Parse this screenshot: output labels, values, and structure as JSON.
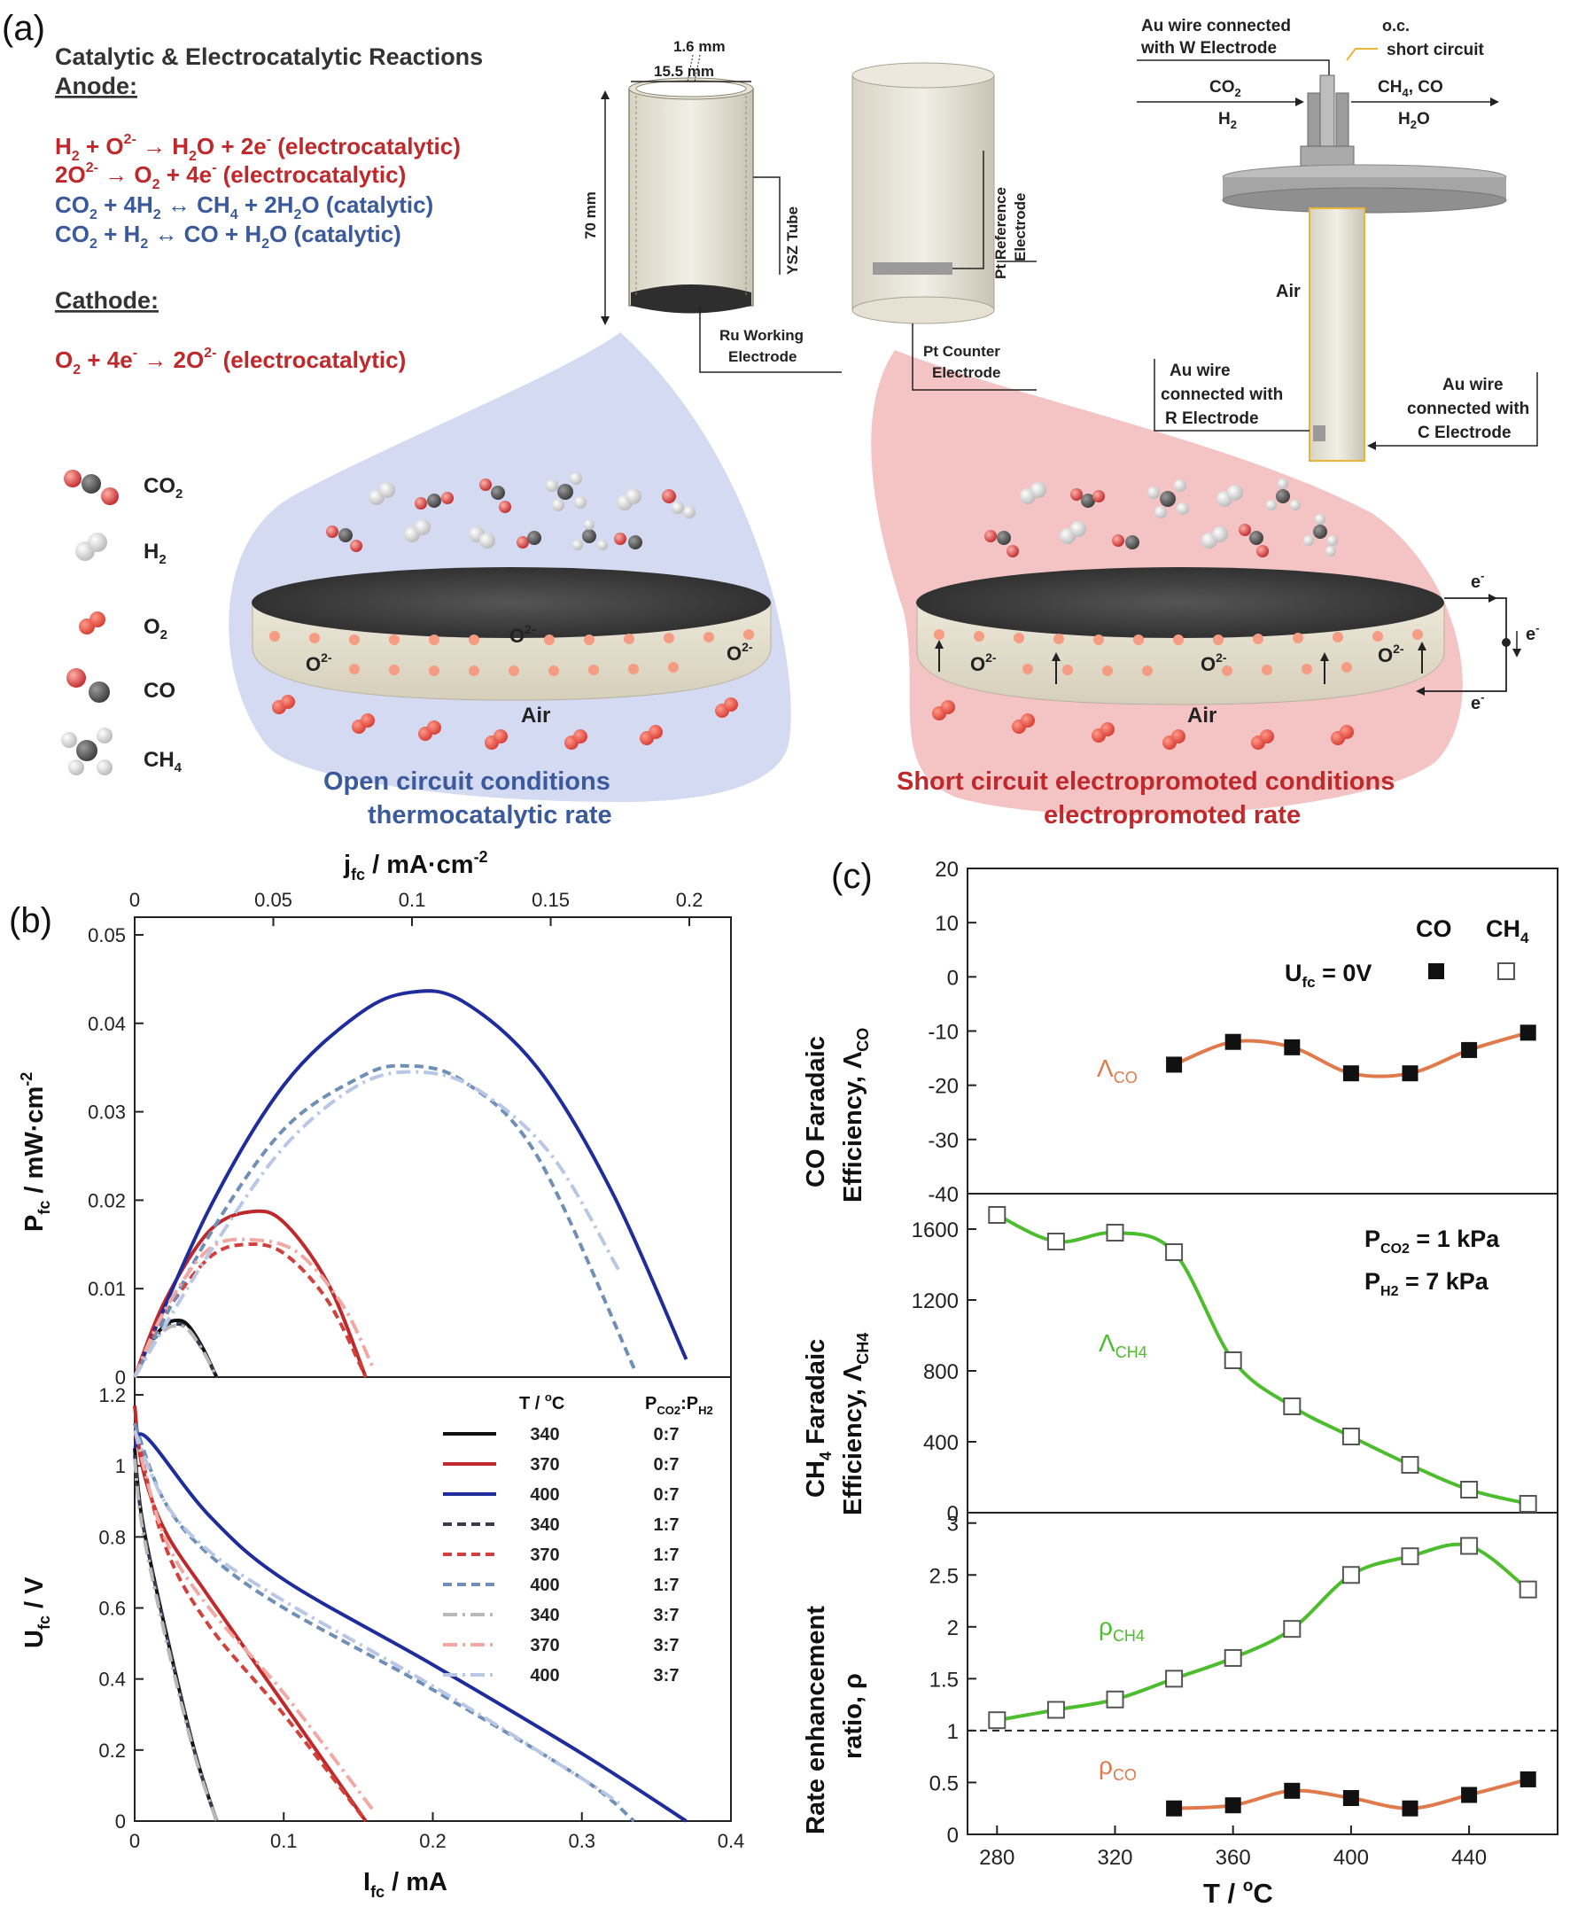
{
  "panel_a": {
    "label": "(a)",
    "title": "Catalytic & Electrocatalytic Reactions",
    "anode_heading": "Anode:",
    "cathode_heading": "Cathode:",
    "reactions": {
      "r1": {
        "a": "H",
        "a_sub": "2",
        "b": " + O",
        "b_sup": "2-",
        "c": " → H",
        "c_sub": "2",
        "d": "O + 2e",
        "d_sup": "-",
        "e": " (electrocatalytic)"
      },
      "r2": {
        "a": "2O",
        "a_sup": "2-",
        "b": " → O",
        "b_sub": "2",
        "c": " + 4e",
        "c_sup": "-",
        "d": " (electrocatalytic)"
      },
      "r3": {
        "a": "CO",
        "a_sub": "2",
        "b": " + 4H",
        "b_sub": "2",
        "c": " ↔ CH",
        "c_sub": "4",
        "d": " + 2H",
        "d_sub": "2",
        "e": "O (catalytic)"
      },
      "r4": {
        "a": "CO",
        "a_sub": "2",
        "b": " + H",
        "b_sub": "2",
        "c": " ↔ CO + H",
        "c_sub": "2",
        "d": "O (catalytic)"
      },
      "r5": {
        "a": "O",
        "a_sub": "2",
        "b": " + 4e",
        "b_sup": "-",
        "c": " → 2O",
        "c_sup": "2-",
        "d": " (electrocatalytic)"
      }
    },
    "tube": {
      "thickness": "1.6 mm",
      "diameter": "15.5 mm",
      "height": "70 mm",
      "ysz": "YSZ Tube",
      "ru_line1": "Ru Working",
      "ru_line2": "Electrode"
    },
    "outer": {
      "pt_ref_line1": "Pt Reference",
      "pt_ref_line2": "Electrode",
      "pt_counter_line1": "Pt Counter",
      "pt_counter_line2": "Electrode"
    },
    "reactor": {
      "au_w_line1": "Au wire connected",
      "au_w_line2": "with W Electrode",
      "oc": "o.c.",
      "sc": "short circuit",
      "in_line1": "CO",
      "in_line1_sub": "2",
      "in_line2": "H",
      "in_line2_sub": "2",
      "out_line1": "CH",
      "out_line1_sub": "4",
      "out_line1_b": ", CO",
      "out_line2": "H",
      "out_line2_sub": "2",
      "out_line2_b": "O",
      "air": "Air",
      "au_r_line1": "Au wire",
      "au_r_line2": "connected with",
      "au_r_line3": "R Electrode",
      "au_c_line1": "Au wire",
      "au_c_line2": "connected with",
      "au_c_line3": "C Electrode"
    },
    "legend": {
      "co2": "CO",
      "co2_sub": "2",
      "h2": "H",
      "h2_sub": "2",
      "o2": "O",
      "o2_sub": "2",
      "co": "CO",
      "ch4": "CH",
      "ch4_sub": "4"
    },
    "disk": {
      "o2minus": "O",
      "o2minus_sup": "2-",
      "air": "Air",
      "e": "e",
      "e_sup": "-"
    },
    "caption_left_1": "Open circuit conditions",
    "caption_left_2": "thermocatalytic rate",
    "caption_right_1": "Short circuit electropromoted conditions",
    "caption_right_2": "electropromoted rate",
    "colors": {
      "red": "#c0292b",
      "blue": "#3a5a9c",
      "blue_bg": "#d4daf2",
      "red_bg": "#f4c4c4"
    }
  },
  "panel_b": {
    "label": "(b)",
    "top_axis_label": "j",
    "top_axis_label_sub": "fc",
    "top_axis_label_b": " / mA·cm",
    "top_axis_label_sup": "-2",
    "y1_label": "P",
    "y1_label_sub": "fc",
    "y1_label_b": " / mW·cm",
    "y1_label_sup": "-2",
    "y2_label": "U",
    "y2_label_sub": "fc",
    "y2_label_b": " / V",
    "x_label": "I",
    "x_label_sub": "fc",
    "x_label_b": " / mA",
    "legend_head_t": "T / ",
    "legend_head_t_sup": "o",
    "legend_head_t_b": "C",
    "legend_head_p": "P",
    "legend_head_p_sub": "CO2",
    "legend_head_p_b": ":P",
    "legend_head_p_sub2": "H2",
    "legend_rows": [
      {
        "t": "340",
        "r": "0:7"
      },
      {
        "t": "370",
        "r": "0:7"
      },
      {
        "t": "400",
        "r": "0:7"
      },
      {
        "t": "340",
        "r": "1:7"
      },
      {
        "t": "370",
        "r": "1:7"
      },
      {
        "t": "400",
        "r": "1:7"
      },
      {
        "t": "340",
        "r": "3:7"
      },
      {
        "t": "370",
        "r": "3:7"
      },
      {
        "t": "400",
        "r": "3:7"
      }
    ]
  },
  "panel_c": {
    "label": "(c)",
    "top_legend_co": "CO",
    "top_legend_ch4": "CH",
    "top_legend_ch4_sub": "4",
    "ufc": "U",
    "ufc_sub": "fc",
    "ufc_b": " = 0V",
    "lambda_co": "Λ",
    "lambda_co_sub": "CO",
    "lambda_ch4": "Λ",
    "lambda_ch4_sub": "CH4",
    "rho_ch4": "ρ",
    "rho_ch4_sub": "CH4",
    "rho_co": "ρ",
    "rho_co_sub": "CO",
    "pco2": "P",
    "pco2_sub": "CO2",
    "pco2_b": " = 1 kPa",
    "ph2": "P",
    "ph2_sub": "H2",
    "ph2_b": " = 7 kPa",
    "y1_line1": "CO Faradaic",
    "y1_line2": "Efficiency, Λ",
    "y1_line2_sub": "CO",
    "y2_line1": "CH",
    "y2_line1_sub": "4",
    "y2_line1_b": " Faradaic",
    "y2_line2": "Efficiency, Λ",
    "y2_line2_sub": "CH4",
    "y3_line1": "Rate enhancement",
    "y3_line2": "ratio, ρ",
    "x_label": "T / ",
    "x_label_sup": "o",
    "x_label_b": "C"
  },
  "chart_data": [
    {
      "type": "line",
      "title": "",
      "xlabel": "Ifc / mA",
      "x2label": "jfc / mA·cm-2",
      "ylabel": "Pfc / mW·cm-2",
      "xlim": [
        0,
        0.4
      ],
      "x2lim": [
        0,
        0.215
      ],
      "ylim": [
        0,
        0.052
      ],
      "x2_ticks": [
        "0",
        "0.05",
        "0.1",
        "0.15",
        "0.2"
      ],
      "y_ticks": [
        "0",
        "0.01",
        "0.02",
        "0.03",
        "0.04",
        "0.05"
      ],
      "series": [
        {
          "t": "340",
          "r": "0:7",
          "style": "solid",
          "color": "#111111",
          "x": [
            0,
            0.01,
            0.02,
            0.027,
            0.035,
            0.045,
            0.055
          ],
          "y": [
            0,
            0.0038,
            0.0058,
            0.0064,
            0.006,
            0.0035,
            0
          ]
        },
        {
          "t": "370",
          "r": "0:7",
          "style": "solid",
          "color": "#c0292b",
          "x": [
            0,
            0.02,
            0.05,
            0.078,
            0.1,
            0.13,
            0.155
          ],
          "y": [
            0,
            0.0085,
            0.0165,
            0.0187,
            0.0175,
            0.0105,
            0
          ]
        },
        {
          "t": "400",
          "r": "0:7",
          "style": "solid",
          "color": "#1f2c9c",
          "x": [
            0,
            0.05,
            0.1,
            0.15,
            0.185,
            0.22,
            0.27,
            0.32,
            0.37
          ],
          "y": [
            0,
            0.019,
            0.033,
            0.041,
            0.0435,
            0.0425,
            0.035,
            0.021,
            0.002
          ]
        },
        {
          "t": "340",
          "r": "1:7",
          "style": "dash",
          "color": "#3a3a50",
          "x": [
            0,
            0.01,
            0.02,
            0.027,
            0.035,
            0.045,
            0.055
          ],
          "y": [
            0,
            0.0036,
            0.0055,
            0.006,
            0.0056,
            0.0033,
            0
          ]
        },
        {
          "t": "370",
          "r": "1:7",
          "style": "dash",
          "color": "#d0413c",
          "x": [
            0,
            0.02,
            0.05,
            0.075,
            0.1,
            0.13,
            0.155
          ],
          "y": [
            0,
            0.007,
            0.0135,
            0.015,
            0.014,
            0.0085,
            0
          ]
        },
        {
          "t": "400",
          "r": "1:7",
          "style": "dash",
          "color": "#6f8fb6",
          "x": [
            0,
            0.05,
            0.1,
            0.15,
            0.18,
            0.22,
            0.27,
            0.335
          ],
          "y": [
            0,
            0.016,
            0.028,
            0.0338,
            0.0352,
            0.0335,
            0.025,
            0.001
          ]
        },
        {
          "t": "340",
          "r": "3:7",
          "style": "dashdot",
          "color": "#b8b8b8",
          "x": [
            0,
            0.01,
            0.02,
            0.027,
            0.035,
            0.045,
            0.055
          ],
          "y": [
            0,
            0.0035,
            0.0053,
            0.0058,
            0.0055,
            0.0032,
            0
          ]
        },
        {
          "t": "370",
          "r": "3:7",
          "style": "dashdot",
          "color": "#f0a9a3",
          "x": [
            0,
            0.02,
            0.05,
            0.08,
            0.11,
            0.14,
            0.16
          ],
          "y": [
            0,
            0.0075,
            0.0145,
            0.0155,
            0.014,
            0.008,
            0.001
          ]
        },
        {
          "t": "400",
          "r": "3:7",
          "style": "dashdot",
          "color": "#b9c7e6",
          "x": [
            0,
            0.05,
            0.1,
            0.15,
            0.19,
            0.23,
            0.28,
            0.325
          ],
          "y": [
            0,
            0.014,
            0.026,
            0.033,
            0.0345,
            0.0325,
            0.025,
            0.012
          ]
        }
      ]
    },
    {
      "type": "line",
      "title": "",
      "xlabel": "Ifc / mA",
      "ylabel": "Ufc / V",
      "xlim": [
        0,
        0.4
      ],
      "ylim": [
        0,
        1.25
      ],
      "x_ticks": [
        "0",
        "0.1",
        "0.2",
        "0.3",
        "0.4"
      ],
      "y_ticks": [
        "0",
        "0.2",
        "0.4",
        "0.6",
        "0.8",
        "1",
        "1.2"
      ],
      "series": [
        {
          "t": "340",
          "r": "0:7",
          "style": "solid",
          "color": "#111111",
          "x": [
            0,
            0.005,
            0.02,
            0.04,
            0.055
          ],
          "y": [
            1.05,
            0.85,
            0.55,
            0.2,
            0
          ]
        },
        {
          "t": "370",
          "r": "0:7",
          "style": "solid",
          "color": "#c0292b",
          "x": [
            0,
            0.005,
            0.02,
            0.05,
            0.1,
            0.155
          ],
          "y": [
            1.17,
            1.0,
            0.82,
            0.63,
            0.33,
            0
          ]
        },
        {
          "t": "400",
          "r": "0:7",
          "style": "solid",
          "color": "#1f2c9c",
          "x": [
            0,
            0.008,
            0.05,
            0.1,
            0.2,
            0.3,
            0.37
          ],
          "y": [
            1.05,
            1.08,
            0.86,
            0.68,
            0.44,
            0.19,
            0
          ]
        },
        {
          "t": "340",
          "r": "1:7",
          "style": "dash",
          "color": "#3a3a50",
          "x": [
            0,
            0.005,
            0.02,
            0.04,
            0.055
          ],
          "y": [
            1.03,
            0.85,
            0.55,
            0.2,
            0
          ]
        },
        {
          "t": "370",
          "r": "1:7",
          "style": "dash",
          "color": "#d0413c",
          "x": [
            0,
            0.02,
            0.05,
            0.1,
            0.155
          ],
          "y": [
            1.12,
            0.78,
            0.55,
            0.3,
            0
          ]
        },
        {
          "t": "400",
          "r": "1:7",
          "style": "dash",
          "color": "#6f8fb6",
          "x": [
            0,
            0.02,
            0.05,
            0.1,
            0.2,
            0.3,
            0.335
          ],
          "y": [
            1.12,
            0.9,
            0.75,
            0.6,
            0.37,
            0.12,
            0
          ]
        },
        {
          "t": "340",
          "r": "3:7",
          "style": "dashdot",
          "color": "#b8b8b8",
          "x": [
            0,
            0.005,
            0.02,
            0.04,
            0.055
          ],
          "y": [
            1.02,
            0.83,
            0.53,
            0.19,
            0
          ]
        },
        {
          "t": "370",
          "r": "3:7",
          "style": "dashdot",
          "color": "#f0a9a3",
          "x": [
            0,
            0.02,
            0.05,
            0.1,
            0.16
          ],
          "y": [
            1.1,
            0.8,
            0.6,
            0.36,
            0.03
          ]
        },
        {
          "t": "400",
          "r": "3:7",
          "style": "dashdot",
          "color": "#b9c7e6",
          "x": [
            0,
            0.02,
            0.05,
            0.1,
            0.2,
            0.3,
            0.325
          ],
          "y": [
            1.1,
            0.9,
            0.76,
            0.62,
            0.38,
            0.12,
            0.05
          ]
        }
      ]
    },
    {
      "type": "scatter",
      "title": "",
      "xlabel": "T / oC",
      "ylabel": "CO Faradaic Efficiency, ΛCO",
      "xlim": [
        270,
        470
      ],
      "ylim": [
        -40,
        20
      ],
      "y_ticks": [
        "-40",
        "-30",
        "-20",
        "-10",
        "0",
        "10",
        "20"
      ],
      "series": [
        {
          "name": "CO",
          "marker": "filled-square",
          "color": "#e07a4a",
          "x": [
            340,
            360,
            380,
            400,
            420,
            440,
            460
          ],
          "y": [
            -16.2,
            -12.0,
            -13.0,
            -17.8,
            -17.8,
            -13.5,
            -10.3
          ]
        }
      ]
    },
    {
      "type": "scatter",
      "title": "",
      "xlabel": "T / oC",
      "ylabel": "CH4 Faradaic Efficiency, ΛCH4",
      "xlim": [
        270,
        470
      ],
      "ylim": [
        0,
        1800
      ],
      "y_ticks": [
        "0",
        "400",
        "800",
        "1200",
        "1600"
      ],
      "series": [
        {
          "name": "CH4",
          "marker": "open-square",
          "color": "#4cbe2e",
          "x": [
            280,
            300,
            320,
            340,
            360,
            380,
            400,
            420,
            440,
            460
          ],
          "y": [
            1680,
            1530,
            1580,
            1470,
            860,
            600,
            430,
            270,
            130,
            50
          ]
        }
      ]
    },
    {
      "type": "scatter",
      "title": "",
      "xlabel": "T / oC",
      "ylabel": "Rate enhancement ratio, ρ",
      "xlim": [
        270,
        470
      ],
      "ylim": [
        0,
        3.1
      ],
      "x_ticks": [
        "280",
        "320",
        "360",
        "400",
        "440"
      ],
      "y_ticks": [
        "0",
        "0.5",
        "1",
        "1.5",
        "2",
        "2.5",
        "3"
      ],
      "reference_line": 1,
      "series": [
        {
          "name": "CH4",
          "marker": "open-square",
          "color": "#4cbe2e",
          "x": [
            280,
            300,
            320,
            340,
            360,
            380,
            400,
            420,
            440,
            460
          ],
          "y": [
            1.1,
            1.2,
            1.3,
            1.5,
            1.7,
            1.98,
            2.5,
            2.68,
            2.78,
            2.36
          ]
        },
        {
          "name": "CO",
          "marker": "filled-square",
          "color": "#e07a4a",
          "x": [
            340,
            360,
            380,
            400,
            420,
            440,
            460
          ],
          "y": [
            0.25,
            0.28,
            0.42,
            0.35,
            0.25,
            0.38,
            0.53
          ]
        }
      ]
    }
  ]
}
